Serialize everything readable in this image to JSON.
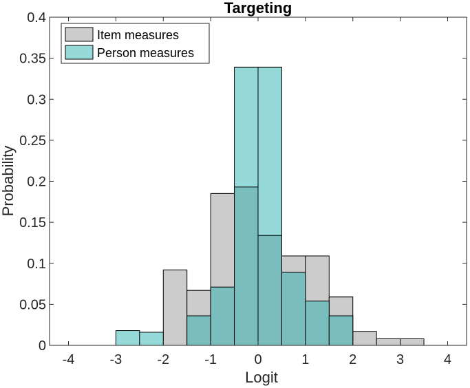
{
  "chart_data": {
    "type": "bar",
    "subtype": "overlaid-histogram",
    "title": "Targeting",
    "xlabel": "Logit",
    "ylabel": "Probability",
    "xlim": [
      -4.4,
      4.4
    ],
    "ylim": [
      0,
      0.4
    ],
    "xticks": [
      -4,
      -3,
      -2,
      -1,
      0,
      1,
      2,
      3,
      4
    ],
    "xtick_labels": [
      "-4",
      "-3",
      "-2",
      "-1",
      "0",
      "1",
      "2",
      "3",
      "4"
    ],
    "yticks": [
      0,
      0.05,
      0.1,
      0.15,
      0.2,
      0.25,
      0.3,
      0.35,
      0.4
    ],
    "ytick_labels": [
      "0",
      "0.05",
      "0.1",
      "0.15",
      "0.2",
      "0.25",
      "0.3",
      "0.35",
      "0.4"
    ],
    "bin_edges": [
      -4,
      -3.5,
      -3,
      -2.5,
      -2,
      -1.5,
      -1,
      -0.5,
      0,
      0.5,
      1,
      1.5,
      2,
      2.5,
      3,
      3.5,
      4
    ],
    "grid": false,
    "legend_position": "top-left",
    "series": [
      {
        "name": "Item measures",
        "color": "#cccccc",
        "values": [
          0,
          0,
          0,
          0,
          0.092,
          0.067,
          0.185,
          0.193,
          0.134,
          0.109,
          0.109,
          0.059,
          0.017,
          0.008,
          0.008,
          0
        ]
      },
      {
        "name": "Person measures",
        "color": "#95dad8",
        "values": [
          0,
          0,
          0.018,
          0.016,
          0,
          0.036,
          0.071,
          0.339,
          0.339,
          0.089,
          0.054,
          0.036,
          0,
          0,
          0,
          0
        ]
      }
    ],
    "overlap_color": "#7abdbd"
  }
}
